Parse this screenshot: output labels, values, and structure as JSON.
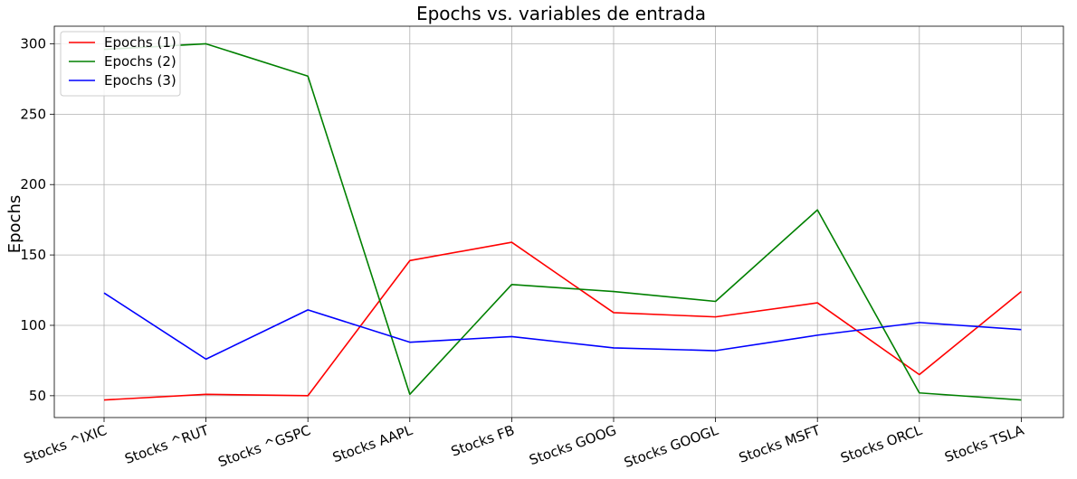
{
  "chart_data": {
    "type": "line",
    "title": "Epochs vs. variables de entrada",
    "xlabel": "",
    "ylabel": "Epochs",
    "categories": [
      "Stocks ^IXIC",
      "Stocks ^RUT",
      "Stocks ^GSPC",
      "Stocks AAPL",
      "Stocks FB",
      "Stocks GOOG",
      "Stocks GOOGL",
      "Stocks MSFT",
      "Stocks ORCL",
      "Stocks TSLA"
    ],
    "series": [
      {
        "name": "Epochs (1)",
        "color": "#ff0000",
        "values": [
          47,
          51,
          50,
          146,
          159,
          109,
          106,
          116,
          65,
          124
        ]
      },
      {
        "name": "Epochs (2)",
        "color": "#008000",
        "values": [
          296,
          300,
          277,
          51,
          129,
          124,
          117,
          182,
          52,
          47
        ]
      },
      {
        "name": "Epochs (3)",
        "color": "#0000ff",
        "values": [
          123,
          76,
          111,
          88,
          92,
          84,
          82,
          93,
          102,
          97
        ]
      }
    ],
    "ylim": [
      34.5,
      312.5
    ],
    "yticks": [
      50,
      100,
      150,
      200,
      250,
      300
    ],
    "grid": true,
    "legend_position": "top-left"
  }
}
